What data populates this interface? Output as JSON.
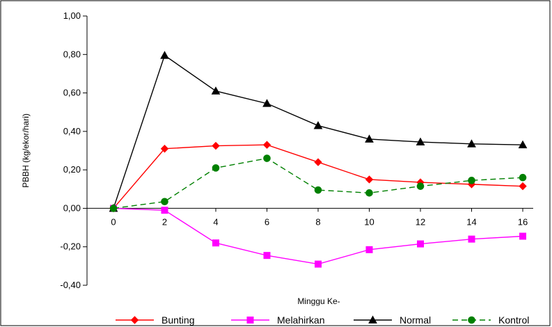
{
  "chart_data": {
    "type": "line",
    "title": "",
    "xlabel": "Minggu Ke-",
    "ylabel": "PBBH (kg/ekor/hari)",
    "x": [
      0,
      2,
      4,
      6,
      8,
      10,
      12,
      14,
      16
    ],
    "x_tick_labels": [
      "0",
      "2",
      "4",
      "6",
      "8",
      "10",
      "12",
      "14",
      "16"
    ],
    "ylim": [
      -0.4,
      1.0
    ],
    "y_ticks": [
      -0.4,
      -0.2,
      0.0,
      0.2,
      0.4,
      0.6,
      0.8,
      1.0
    ],
    "y_tick_labels": [
      "-0,40",
      "-0,20",
      "0,00",
      "0,20",
      "0,40",
      "0,60",
      "0,80",
      "1,00"
    ],
    "grid": false,
    "legend_position": "bottom",
    "series": [
      {
        "name": "Bunting",
        "color": "#ff0000",
        "marker": "diamond",
        "dash": "solid",
        "values": [
          0.0,
          0.31,
          0.325,
          0.33,
          0.24,
          0.15,
          0.135,
          0.125,
          0.115
        ]
      },
      {
        "name": "Melahirkan",
        "color": "#ff00ff",
        "marker": "square",
        "dash": "solid",
        "values": [
          0.0,
          -0.01,
          -0.18,
          -0.245,
          -0.29,
          -0.215,
          -0.185,
          -0.16,
          -0.145
        ]
      },
      {
        "name": "Normal",
        "color": "#000000",
        "marker": "triangle",
        "dash": "solid",
        "values": [
          0.0,
          0.795,
          0.61,
          0.545,
          0.43,
          0.36,
          0.345,
          0.335,
          0.33
        ]
      },
      {
        "name": "Kontrol",
        "color": "#008000",
        "marker": "circle",
        "dash": "dashed",
        "values": [
          0.0,
          0.035,
          0.21,
          0.26,
          0.095,
          0.08,
          0.115,
          0.145,
          0.16
        ]
      }
    ]
  }
}
